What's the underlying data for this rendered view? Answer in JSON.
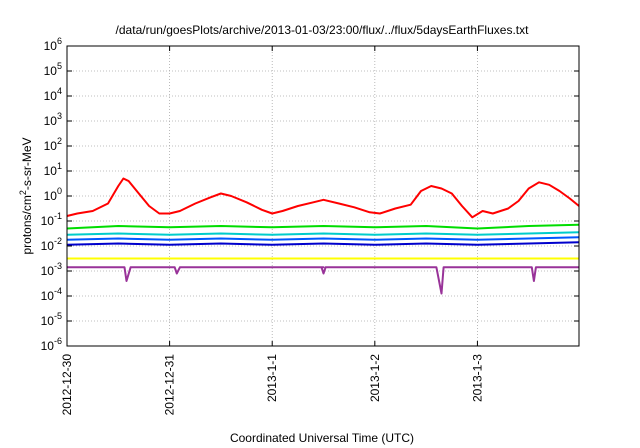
{
  "chart_data": {
    "type": "line",
    "title": "/data/run/goesPlots/archive/2013-01-03/23:00/flux/../flux/5daysEarthFluxes.txt",
    "xlabel": "Coordinated Universal Time (UTC)",
    "ylabel_base": "protons/cm",
    "ylabel_sup": "2",
    "ylabel_rest": "-s-sr-MeV",
    "y_scale": "log",
    "ylim_exp": [
      -6,
      6
    ],
    "y_ticks": [
      {
        "base": "10",
        "exp": "-6",
        "value": -6
      },
      {
        "base": "10",
        "exp": "-5",
        "value": -5
      },
      {
        "base": "10",
        "exp": "-4",
        "value": -4
      },
      {
        "base": "10",
        "exp": "-3",
        "value": -3
      },
      {
        "base": "10",
        "exp": "-2",
        "value": -2
      },
      {
        "base": "10",
        "exp": "-1",
        "value": -1
      },
      {
        "base": "10",
        "exp": "0",
        "value": 0
      },
      {
        "base": "10",
        "exp": "1",
        "value": 1
      },
      {
        "base": "10",
        "exp": "2",
        "value": 2
      },
      {
        "base": "10",
        "exp": "3",
        "value": 3
      },
      {
        "base": "10",
        "exp": "4",
        "value": 4
      },
      {
        "base": "10",
        "exp": "5",
        "value": 5
      },
      {
        "base": "10",
        "exp": "6",
        "value": 6
      }
    ],
    "x_unit": "days",
    "xlim_days": [
      0,
      4.99
    ],
    "x_ticks": [
      {
        "label": "2012-12-30",
        "day": 0
      },
      {
        "label": "2012-12-31",
        "day": 1
      },
      {
        "label": "2013-1-1",
        "day": 2
      },
      {
        "label": "2013-1-2",
        "day": 3
      },
      {
        "label": "2013-1-3",
        "day": 4
      }
    ],
    "grid": true,
    "series": [
      {
        "color": "#ff0000",
        "x_days": [
          0,
          0.1,
          0.25,
          0.4,
          0.5,
          0.55,
          0.6,
          0.7,
          0.8,
          0.9,
          1.0,
          1.1,
          1.25,
          1.4,
          1.5,
          1.6,
          1.75,
          1.9,
          2.0,
          2.1,
          2.25,
          2.4,
          2.5,
          2.65,
          2.8,
          2.95,
          3.05,
          3.2,
          3.35,
          3.45,
          3.55,
          3.65,
          3.75,
          3.85,
          3.95,
          4.05,
          4.15,
          4.3,
          4.4,
          4.5,
          4.6,
          4.7,
          4.8,
          4.9,
          4.99
        ],
        "y_log10": [
          -0.8,
          -0.7,
          -0.6,
          -0.3,
          0.4,
          0.7,
          0.6,
          0.1,
          -0.4,
          -0.7,
          -0.7,
          -0.6,
          -0.3,
          -0.05,
          0.1,
          0.0,
          -0.25,
          -0.55,
          -0.7,
          -0.6,
          -0.4,
          -0.25,
          -0.15,
          -0.3,
          -0.45,
          -0.65,
          -0.7,
          -0.5,
          -0.35,
          0.2,
          0.4,
          0.3,
          0.1,
          -0.4,
          -0.85,
          -0.6,
          -0.7,
          -0.5,
          -0.2,
          0.3,
          0.55,
          0.45,
          0.2,
          -0.1,
          -0.4
        ]
      },
      {
        "color": "#00dd00",
        "x_days": [
          0,
          0.5,
          1.0,
          1.5,
          2.0,
          2.5,
          3.0,
          3.5,
          4.0,
          4.5,
          4.99
        ],
        "y_log10": [
          -1.3,
          -1.2,
          -1.25,
          -1.2,
          -1.25,
          -1.2,
          -1.25,
          -1.2,
          -1.3,
          -1.2,
          -1.15
        ]
      },
      {
        "color": "#00cccc",
        "x_days": [
          0,
          0.5,
          1.0,
          1.5,
          2.0,
          2.5,
          3.0,
          3.5,
          4.0,
          4.5,
          4.99
        ],
        "y_log10": [
          -1.55,
          -1.5,
          -1.55,
          -1.5,
          -1.55,
          -1.5,
          -1.55,
          -1.5,
          -1.55,
          -1.5,
          -1.45
        ]
      },
      {
        "color": "#0055ff",
        "x_days": [
          0,
          0.5,
          1.0,
          1.5,
          2.0,
          2.5,
          3.0,
          3.5,
          4.0,
          4.5,
          4.99
        ],
        "y_log10": [
          -1.75,
          -1.7,
          -1.75,
          -1.7,
          -1.75,
          -1.7,
          -1.75,
          -1.7,
          -1.75,
          -1.7,
          -1.65
        ]
      },
      {
        "color": "#0000cc",
        "x_days": [
          0,
          0.5,
          1.0,
          1.5,
          2.0,
          2.5,
          3.0,
          3.5,
          4.0,
          4.5,
          4.99
        ],
        "y_log10": [
          -1.95,
          -1.9,
          -1.95,
          -1.9,
          -1.95,
          -1.9,
          -1.95,
          -1.9,
          -1.95,
          -1.9,
          -1.85
        ]
      },
      {
        "color": "#ffff00",
        "x_days": [
          0,
          0.5,
          1.0,
          1.5,
          2.0,
          2.5,
          3.0,
          3.5,
          4.0,
          4.5,
          4.99
        ],
        "y_log10": [
          -2.5,
          -2.5,
          -2.5,
          -2.5,
          -2.5,
          -2.5,
          -2.5,
          -2.5,
          -2.5,
          -2.5,
          -2.5
        ]
      },
      {
        "color": "#993399",
        "x_days": [
          0,
          0.5,
          0.56,
          0.58,
          0.62,
          1.0,
          1.05,
          1.07,
          1.1,
          1.5,
          2.0,
          2.5,
          2.48,
          2.5,
          2.52,
          3.0,
          3.6,
          3.65,
          3.67,
          3.69,
          4.0,
          4.53,
          4.55,
          4.57,
          4.99
        ],
        "y_log10": [
          -2.85,
          -2.85,
          -2.85,
          -3.4,
          -2.85,
          -2.85,
          -2.85,
          -3.1,
          -2.85,
          -2.85,
          -2.85,
          -2.85,
          -2.85,
          -3.1,
          -2.85,
          -2.85,
          -2.85,
          -3.9,
          -2.85,
          -2.85,
          -2.85,
          -2.85,
          -3.4,
          -2.85,
          -2.85
        ]
      }
    ]
  }
}
